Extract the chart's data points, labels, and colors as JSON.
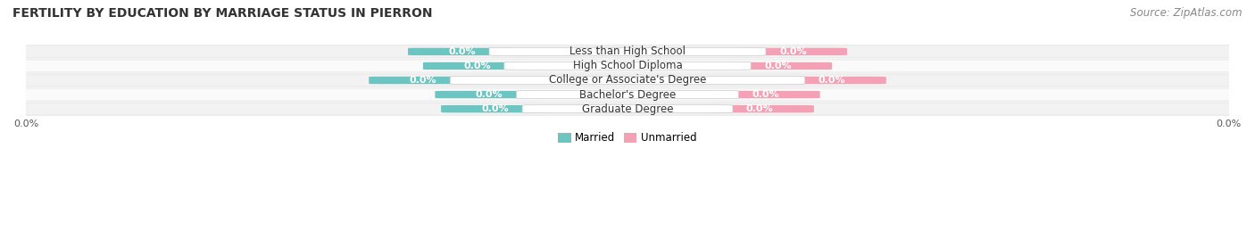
{
  "title": "FERTILITY BY EDUCATION BY MARRIAGE STATUS IN PIERRON",
  "source": "Source: ZipAtlas.com",
  "categories": [
    "Less than High School",
    "High School Diploma",
    "College or Associate's Degree",
    "Bachelor's Degree",
    "Graduate Degree"
  ],
  "married_values": [
    0.0,
    0.0,
    0.0,
    0.0,
    0.0
  ],
  "unmarried_values": [
    0.0,
    0.0,
    0.0,
    0.0,
    0.0
  ],
  "married_color": "#6cc5c1",
  "unmarried_color": "#f4a0b5",
  "row_bg_light": "#f2f2f2",
  "row_bg_white": "#fafafa",
  "title_fontsize": 10,
  "source_fontsize": 8.5,
  "label_fontsize": 8,
  "cat_fontsize": 8.5,
  "tick_fontsize": 8,
  "xlim_left": "0.0%",
  "xlim_right": "0.0%"
}
